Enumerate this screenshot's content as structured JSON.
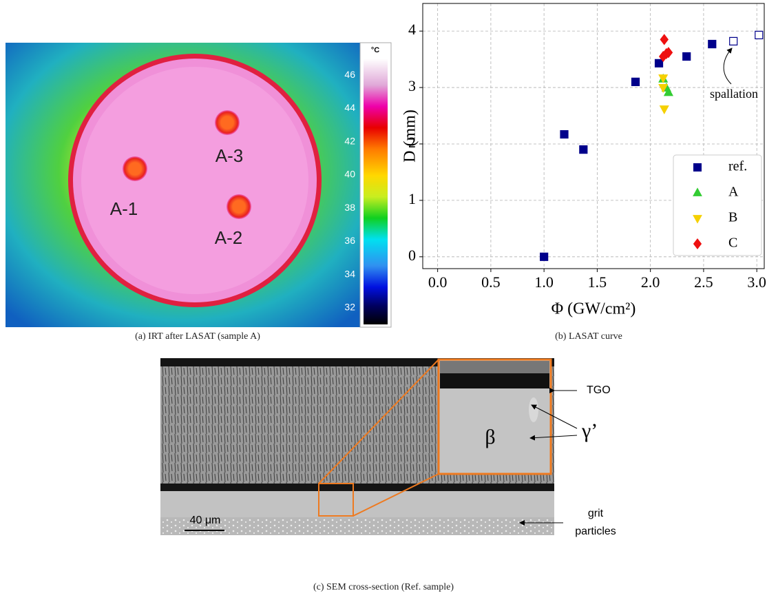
{
  "irt": {
    "unit": "°C",
    "colorbar_lim": [
      31,
      47
    ],
    "colorbar_ticks": [
      46,
      44,
      42,
      40,
      38,
      36,
      34,
      32
    ],
    "spots": [
      "A-1",
      "A-3",
      "A-2"
    ]
  },
  "chart_data": {
    "type": "scatter",
    "xlabel": "Φ (GW/cm²)",
    "ylabel": "D (mm)",
    "xlim": [
      -0.14,
      3.07
    ],
    "ylim": [
      -0.21,
      4.49
    ],
    "xticks": [
      {
        "value": 0,
        "label": "0.0"
      },
      0.5,
      {
        "value": 1,
        "label": "1.0"
      },
      1.5,
      {
        "value": 2,
        "label": "2.0"
      },
      2.5,
      {
        "value": 3,
        "label": "3.0"
      }
    ],
    "yticks": [
      0,
      1,
      2,
      3,
      4
    ],
    "grid": true,
    "legend": "lower right",
    "annotation": "spallation",
    "series": [
      {
        "name": "ref.",
        "color": "#00008b",
        "marker": "square",
        "x": [
          1.0,
          1.19,
          1.37,
          1.86,
          2.08,
          2.34,
          2.58,
          2.78,
          3.02
        ],
        "values": [
          0.0,
          2.17,
          1.9,
          3.1,
          3.43,
          3.55,
          3.77,
          3.82,
          3.93
        ],
        "filled": [
          true,
          true,
          true,
          true,
          true,
          true,
          true,
          false,
          false
        ]
      },
      {
        "name": "A",
        "color": "#33cc33",
        "marker": "triangle-up",
        "x": [
          2.12,
          2.15,
          2.17
        ],
        "values": [
          3.15,
          2.99,
          2.91
        ]
      },
      {
        "name": "B",
        "color": "#f5d000",
        "marker": "triangle-down",
        "x": [
          2.12,
          2.12,
          2.13
        ],
        "values": [
          3.17,
          3.0,
          2.62
        ]
      },
      {
        "name": "C",
        "color": "#ee1111",
        "marker": "diamond",
        "x": [
          2.13,
          2.12,
          2.15,
          2.17
        ],
        "values": [
          3.85,
          3.55,
          3.6,
          3.62
        ]
      }
    ]
  },
  "sem": {
    "tgo": "TGO",
    "gamma_prime": "γ’",
    "beta": "β",
    "grit": [
      "grit",
      "particles"
    ],
    "scale_bar": "40 μm"
  },
  "captions": [
    "(a) IRT after LASAT (sample A)",
    "(b) LASAT curve",
    "(c) SEM cross-section (Ref. sample)"
  ]
}
